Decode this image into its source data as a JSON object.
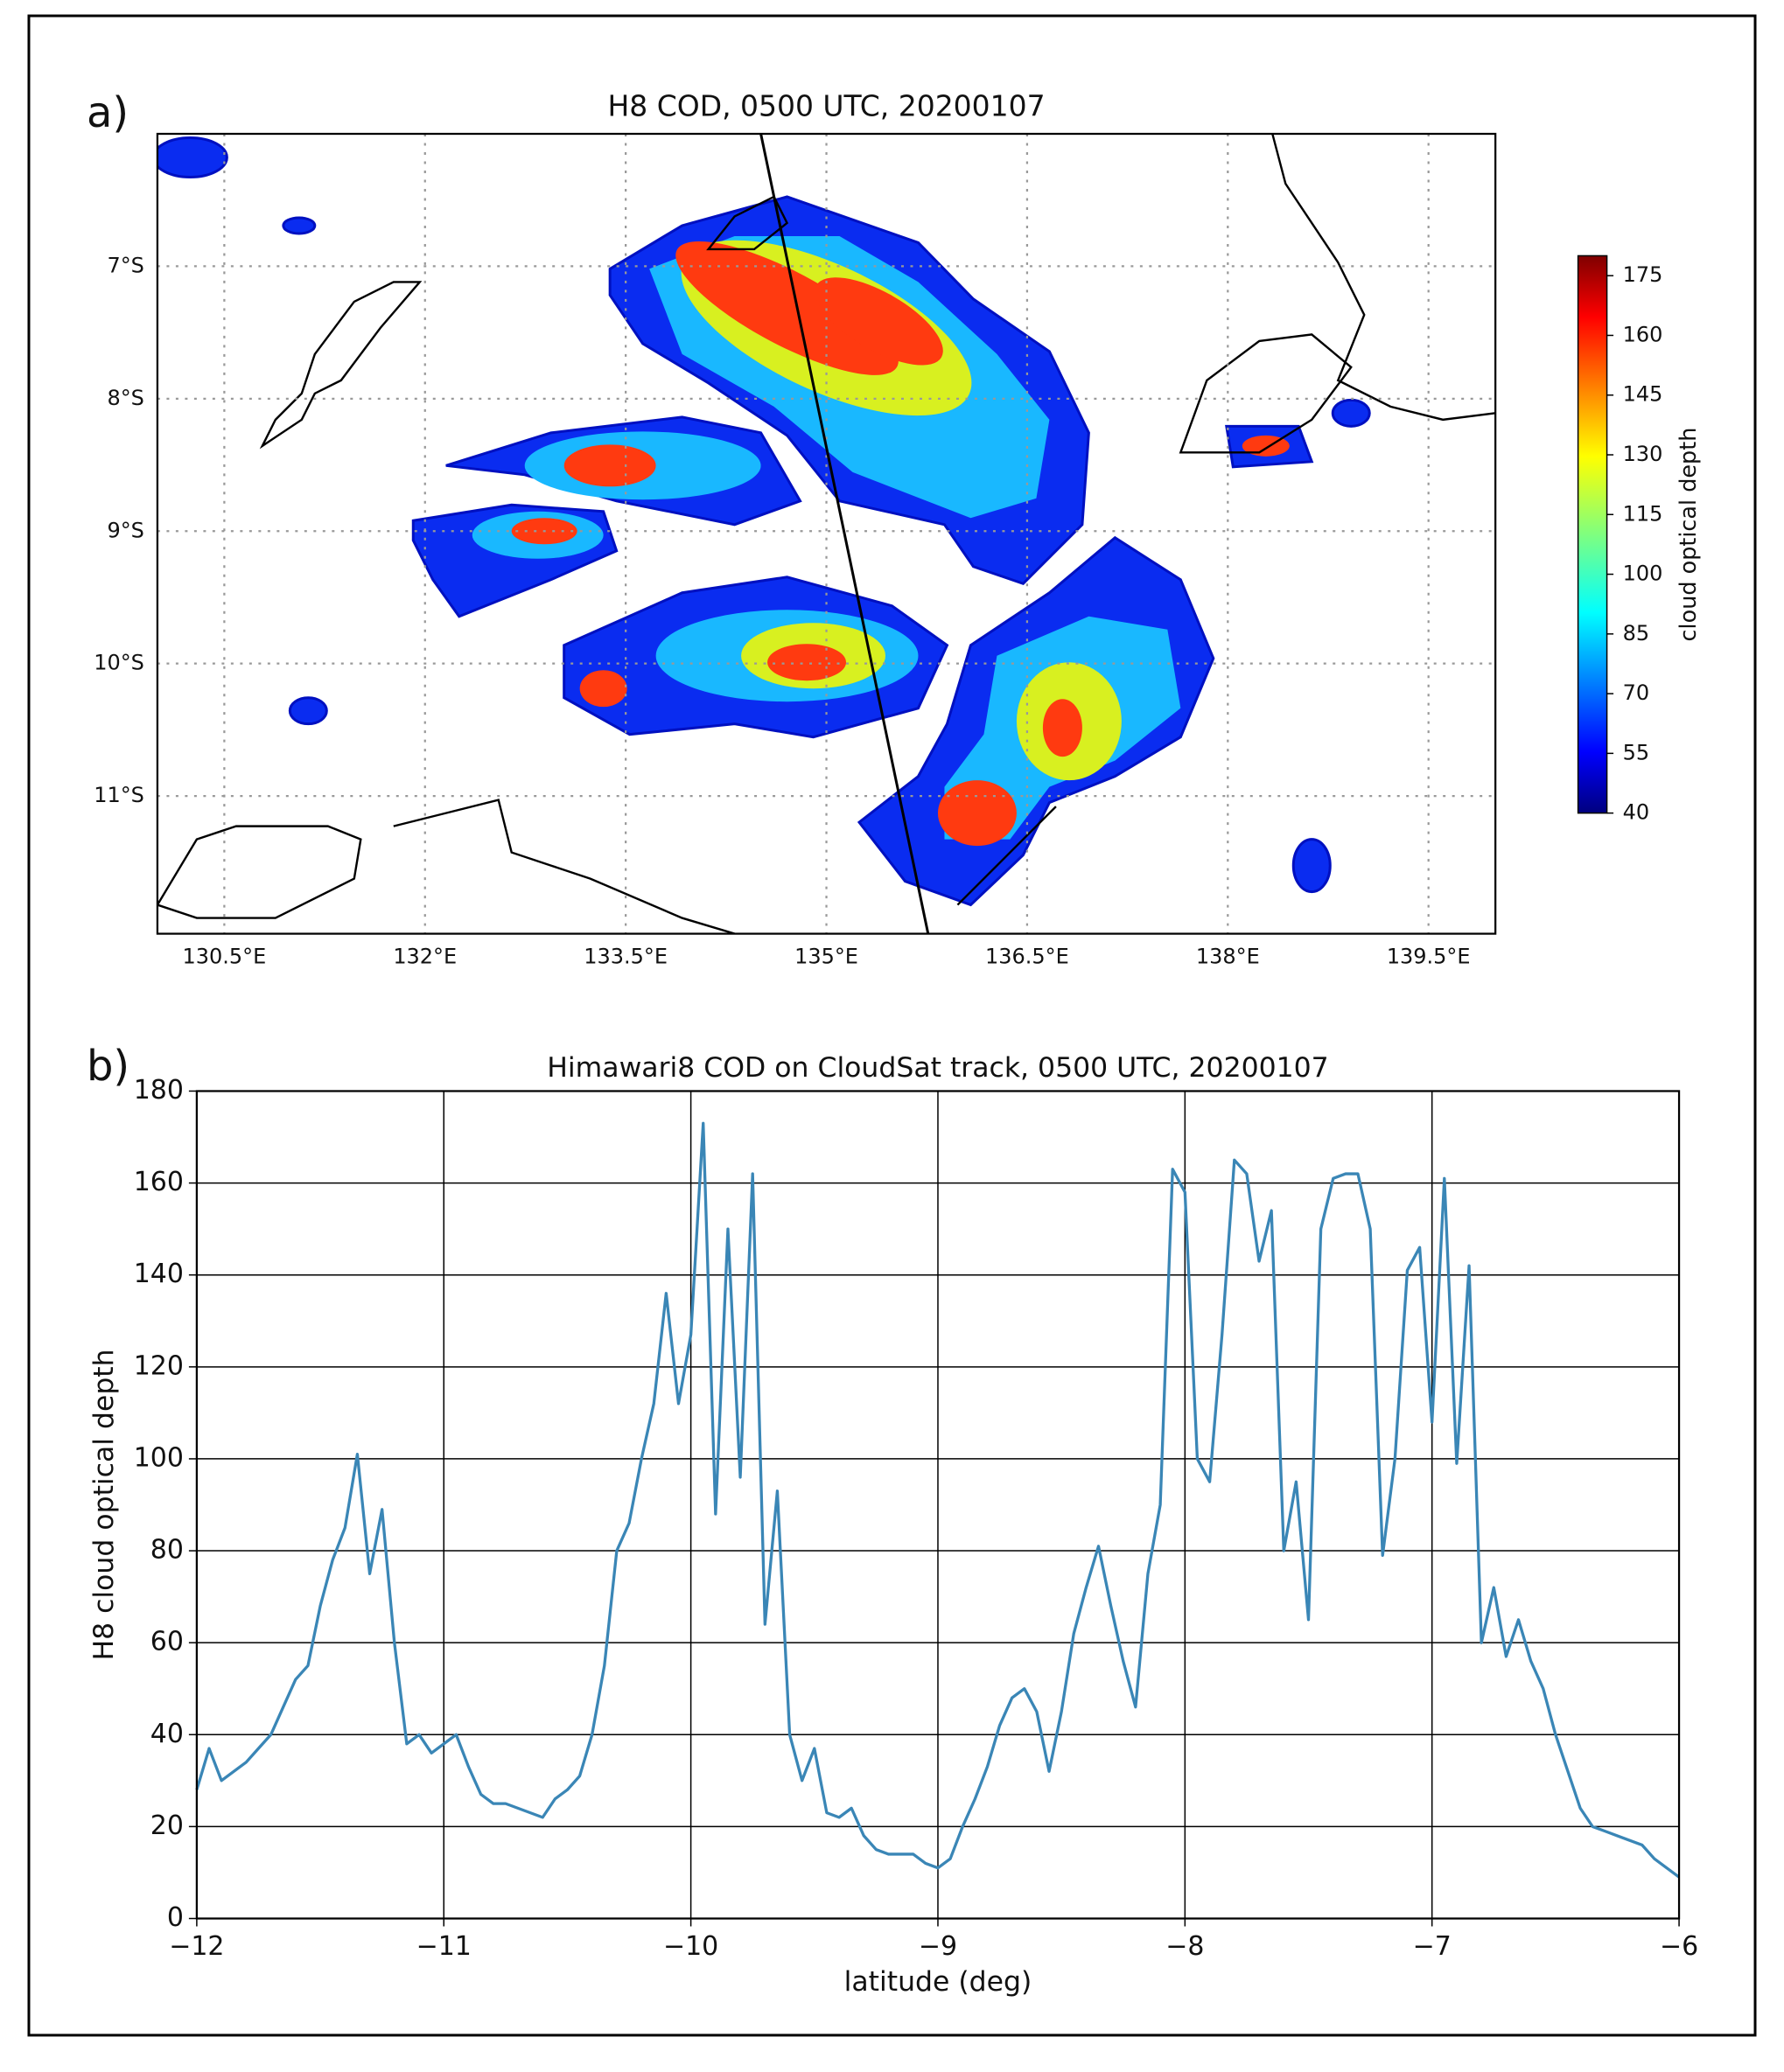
{
  "chart_data": [
    {
      "type": "map",
      "panel": "a)",
      "title": "H8 COD, 0500 UTC, 20200107",
      "xlim": [
        130.0,
        140.0
      ],
      "ylim": [
        -12.04,
        -6.0
      ],
      "xticks": [
        {
          "value": 130.5,
          "label": "130.5°E"
        },
        {
          "value": 132,
          "label": "132°E"
        },
        {
          "value": 133.5,
          "label": "133.5°E"
        },
        {
          "value": 135,
          "label": "135°E"
        },
        {
          "value": 136.5,
          "label": "136.5°E"
        },
        {
          "value": 138,
          "label": "138°E"
        },
        {
          "value": 139.5,
          "label": "139.5°E"
        }
      ],
      "yticks": [
        {
          "value": -7,
          "label": "7°S"
        },
        {
          "value": -8,
          "label": "8°S"
        },
        {
          "value": -9,
          "label": "9°S"
        },
        {
          "value": -10,
          "label": "10°S"
        },
        {
          "value": -11,
          "label": "11°S"
        }
      ],
      "grid": true,
      "track": {
        "lon": [
          134.51,
          135.76
        ],
        "lat": [
          -6.0,
          -12.04
        ]
      },
      "colormap": "jet",
      "clim": [
        40,
        180
      ],
      "cbar_ticks": [
        40,
        55,
        70,
        85,
        100,
        115,
        130,
        145,
        160,
        175
      ],
      "cbar_label": "cloud optical depth"
    },
    {
      "type": "line",
      "panel": "b)",
      "title": "Himawari8 COD on CloudSat track, 0500 UTC, 20200107",
      "xlabel": "latitude (deg)",
      "ylabel": "H8 cloud optical depth",
      "xlim": [
        -12,
        -6
      ],
      "ylim": [
        0,
        180
      ],
      "xticks": [
        {
          "value": -12,
          "label": "−12"
        },
        {
          "value": -11,
          "label": "−11"
        },
        {
          "value": -10,
          "label": "−10"
        },
        {
          "value": -9,
          "label": "−9"
        },
        {
          "value": -8,
          "label": "−8"
        },
        {
          "value": -7,
          "label": "−7"
        },
        {
          "value": -6,
          "label": "−6"
        }
      ],
      "yticks": [
        0,
        20,
        40,
        60,
        80,
        100,
        120,
        140,
        160,
        180
      ],
      "grid": true,
      "color": "#3a86b6",
      "x": [
        -12,
        -11.95,
        -11.9,
        -11.85,
        -11.8,
        -11.75,
        -11.7,
        -11.65,
        -11.6,
        -11.55,
        -11.5,
        -11.45,
        -11.4,
        -11.35,
        -11.3,
        -11.25,
        -11.2,
        -11.15,
        -11.1,
        -11.05,
        -11,
        -10.95,
        -10.9,
        -10.85,
        -10.8,
        -10.75,
        -10.7,
        -10.65,
        -10.6,
        -10.55,
        -10.5,
        -10.45,
        -10.4,
        -10.35,
        -10.3,
        -10.25,
        -10.2,
        -10.15,
        -10.1,
        -10.05,
        -10,
        -9.95,
        -9.9,
        -9.85,
        -9.8,
        -9.75,
        -9.7,
        -9.65,
        -9.6,
        -9.55,
        -9.5,
        -9.45,
        -9.4,
        -9.35,
        -9.3,
        -9.25,
        -9.2,
        -9.15,
        -9.1,
        -9.05,
        -9,
        -8.95,
        -8.9,
        -8.85,
        -8.8,
        -8.75,
        -8.7,
        -8.65,
        -8.6,
        -8.55,
        -8.5,
        -8.45,
        -8.4,
        -8.35,
        -8.3,
        -8.25,
        -8.2,
        -8.15,
        -8.1,
        -8.05,
        -8,
        -7.95,
        -7.9,
        -7.85,
        -7.8,
        -7.75,
        -7.7,
        -7.65,
        -7.6,
        -7.55,
        -7.5,
        -7.45,
        -7.4,
        -7.35,
        -7.3,
        -7.25,
        -7.2,
        -7.15,
        -7.1,
        -7.05,
        -7,
        -6.95,
        -6.9,
        -6.85,
        -6.8,
        -6.75,
        -6.7,
        -6.65,
        -6.6,
        -6.55,
        -6.5,
        -6.45,
        -6.4,
        -6.35,
        -6.3,
        -6.25,
        -6.2,
        -6.15,
        -6.1,
        -6.05,
        -6
      ],
      "values": [
        28,
        37,
        30,
        32,
        34,
        37,
        40,
        46,
        52,
        55,
        68,
        78,
        85,
        101,
        75,
        89,
        60,
        38,
        40,
        36,
        38,
        40,
        33,
        27,
        25,
        25,
        24,
        23,
        22,
        26,
        28,
        31,
        40,
        55,
        80,
        86,
        100,
        112,
        136,
        112,
        127,
        173,
        88,
        150,
        96,
        162,
        64,
        93,
        40,
        30,
        37,
        23,
        22,
        24,
        18,
        15,
        14,
        14,
        14,
        12,
        11,
        13,
        20,
        26,
        33,
        42,
        48,
        50,
        45,
        32,
        45,
        62,
        72,
        81,
        68,
        56,
        46,
        75,
        90,
        163,
        158,
        100,
        95,
        127,
        165,
        162,
        143,
        154,
        80,
        95,
        65,
        150,
        161,
        162,
        162,
        150,
        79,
        100,
        141,
        146,
        108,
        161,
        99,
        142,
        60,
        72,
        57,
        65,
        56,
        50,
        40,
        32,
        24,
        20,
        19,
        18,
        17,
        16,
        13,
        11,
        9
      ]
    }
  ]
}
